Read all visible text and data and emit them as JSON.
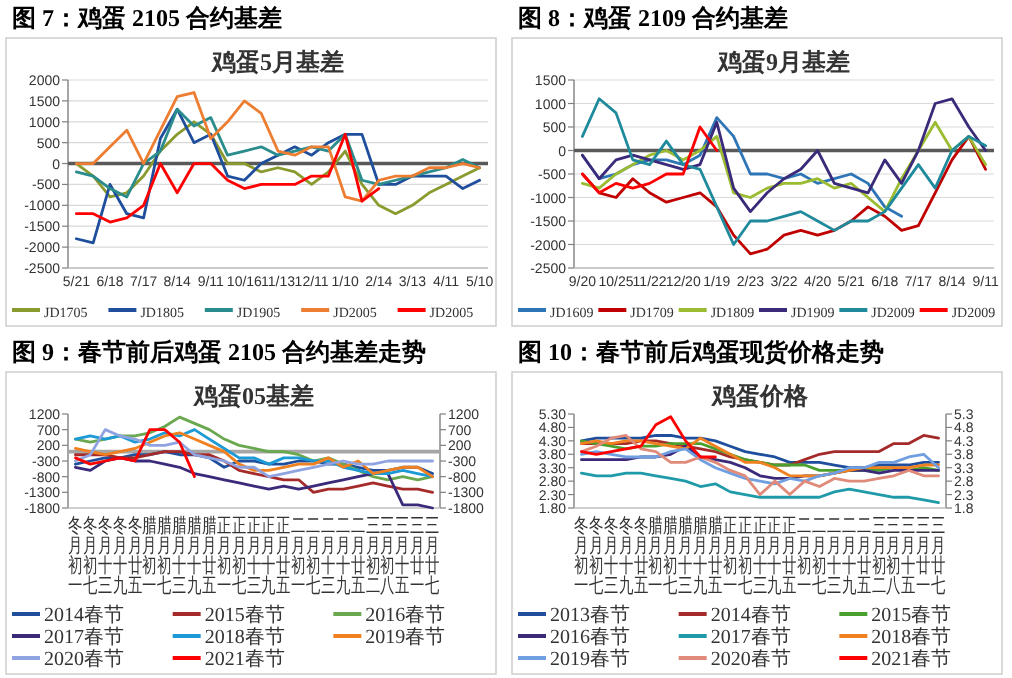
{
  "chart_data": [
    {
      "type": "line",
      "title": "图 7：鸡蛋 2105 合约基差",
      "subtitle": "鸡蛋5月基差",
      "categories": [
        "5/21",
        null,
        "6/18",
        null,
        "7/17",
        null,
        "8/14",
        null,
        "9/11",
        null,
        "10/16",
        null,
        "11/13",
        null,
        "12/11",
        null,
        "1/10",
        null,
        "2/14",
        null,
        "3/13",
        null,
        "4/11",
        null,
        "5/10"
      ],
      "series": [
        {
          "name": "JD1705",
          "color": "#8a9a2e",
          "values": [
            0,
            -300,
            -800,
            -700,
            -300,
            300,
            700,
            1000,
            700,
            0,
            0,
            -200,
            -100,
            -200,
            -500,
            -200,
            300,
            -500,
            -1000,
            -1200,
            -1000,
            -700,
            -500,
            -300,
            -100
          ]
        },
        {
          "name": "JD1805",
          "color": "#1f4e9c",
          "values": [
            -1800,
            -1900,
            -500,
            -1200,
            -1300,
            600,
            1300,
            500,
            700,
            -300,
            -400,
            0,
            200,
            400,
            200,
            500,
            700,
            700,
            -500,
            -500,
            -300,
            -300,
            -300,
            -600,
            -400
          ]
        },
        {
          "name": "JD1905",
          "color": "#2a8c8c",
          "values": [
            -200,
            -300,
            -600,
            -800,
            0,
            300,
            1300,
            900,
            1100,
            200,
            300,
            400,
            200,
            300,
            400,
            300,
            700,
            -400,
            -500,
            -400,
            -300,
            -200,
            -100,
            100,
            -100
          ]
        },
        {
          "name": "JD2005",
          "color": "#ed7d31",
          "values": [
            0,
            0,
            400,
            800,
            0,
            800,
            1600,
            1700,
            600,
            1000,
            1500,
            1200,
            300,
            200,
            400,
            400,
            -800,
            -900,
            -400,
            -300,
            -300,
            -100,
            -100,
            0,
            -100
          ]
        },
        {
          "name": "JD2005",
          "color": "#ff0000",
          "values": [
            -1200,
            -1200,
            -1400,
            -1300,
            -1000,
            0,
            -700,
            0,
            0,
            -400,
            -600,
            -500,
            -500,
            -500,
            -300,
            -300,
            700,
            -900,
            -600,
            null,
            null,
            null,
            null,
            null,
            null
          ]
        }
      ],
      "ylim": [
        -2500,
        2000
      ],
      "yticks": [
        -2500,
        -2000,
        -1500,
        -1000,
        -500,
        0,
        500,
        1000,
        1500,
        2000
      ],
      "grid": "y",
      "legend": "bottom",
      "ref_lines": [
        {
          "axis": "y",
          "value": 0,
          "color": "#595959"
        }
      ]
    },
    {
      "type": "line",
      "title": "图 8：鸡蛋 2109 合约基差",
      "subtitle": "鸡蛋9月基差",
      "categories": [
        "9/20",
        null,
        "10/25",
        null,
        "11/22",
        null,
        "12/20",
        null,
        "1/19",
        null,
        "2/23",
        null,
        "3/22",
        null,
        "4/20",
        null,
        "5/21",
        null,
        "6/18",
        null,
        "7/17",
        null,
        "8/14",
        null,
        "9/11"
      ],
      "series": [
        {
          "name": "JD1609",
          "color": "#2e75b6",
          "values": [
            -100,
            -600,
            -500,
            -300,
            -200,
            -200,
            -300,
            -100,
            700,
            300,
            -500,
            -500,
            -600,
            -500,
            -700,
            -600,
            -500,
            -700,
            -1200,
            -1400,
            null,
            null,
            null,
            null,
            null
          ]
        },
        {
          "name": "JD1709",
          "color": "#c00000",
          "values": [
            -500,
            -900,
            -1000,
            -600,
            -900,
            -1100,
            -1000,
            -900,
            -1200,
            -1800,
            -2200,
            -2100,
            -1800,
            -1700,
            -1800,
            -1700,
            -1500,
            -1200,
            -1400,
            -1700,
            -1600,
            -900,
            -200,
            300,
            -400
          ]
        },
        {
          "name": "JD1809",
          "color": "#9bbb30",
          "values": [
            -700,
            -800,
            -500,
            -300,
            -100,
            0,
            -200,
            0,
            300,
            -900,
            -1000,
            -800,
            -700,
            -700,
            -600,
            -800,
            -700,
            -1000,
            -1300,
            -600,
            0,
            600,
            0,
            300,
            -300
          ]
        },
        {
          "name": "JD1909",
          "color": "#3b2a7a",
          "values": [
            -100,
            -600,
            -200,
            -100,
            -200,
            -300,
            -400,
            -300,
            600,
            -800,
            -1300,
            -900,
            -600,
            -400,
            0,
            -700,
            -800,
            -900,
            -200,
            -700,
            0,
            1000,
            1100,
            500,
            0
          ]
        },
        {
          "name": "JD2009",
          "color": "#1f8a9c",
          "values": [
            300,
            1100,
            800,
            -200,
            -300,
            200,
            -300,
            -400,
            -1200,
            -2000,
            -1500,
            -1500,
            -1400,
            -1300,
            -1500,
            -1700,
            -1500,
            -1500,
            -1300,
            -800,
            -300,
            -800,
            0,
            300,
            100
          ]
        },
        {
          "name": "JD2009",
          "color": "#ff0000",
          "values": [
            -500,
            -900,
            -700,
            -800,
            -700,
            -500,
            -500,
            500,
            0,
            null,
            null,
            null,
            null,
            null,
            null,
            null,
            null,
            null,
            null,
            null,
            null,
            null,
            null,
            null,
            null
          ]
        }
      ],
      "ylim": [
        -2500,
        1500
      ],
      "yticks": [
        -2500,
        -2000,
        -1500,
        -1000,
        -500,
        0,
        500,
        1000,
        1500
      ],
      "grid": "y",
      "legend": "bottom",
      "ref_lines": [
        {
          "axis": "y",
          "value": 0,
          "color": "#595959"
        }
      ]
    },
    {
      "type": "line",
      "title": "图 9：春节前后鸡蛋 2105 合约基差走势",
      "subtitle": "鸡蛋05基差",
      "categories": [
        "冬月初一",
        "冬月初七",
        "冬月十三",
        "冬月十九",
        "冬月廿五",
        "腊月初一",
        "腊月初七",
        "腊月十三",
        "腊月十九",
        "腊月廿五",
        "正月初一",
        "正月初七",
        "正月十三",
        "正月十九",
        "正月廿五",
        "二月初一",
        "二月初七",
        "二月十三",
        "二月十九",
        "二月廿五",
        "三月初二",
        "三月初八",
        "三月十五",
        "三月廿一",
        "三月廿七"
      ],
      "series": [
        {
          "name": "2014春节",
          "color": "#1f4e9c",
          "values": [
            -400,
            -300,
            -200,
            -200,
            -100,
            -100,
            0,
            -100,
            -100,
            -200,
            -500,
            -300,
            -300,
            -400,
            -400,
            -300,
            -300,
            -400,
            -400,
            -500,
            -600,
            -600,
            -500,
            -500,
            -700
          ]
        },
        {
          "name": "2015春节",
          "color": "#a52a2a",
          "values": [
            -100,
            -100,
            -100,
            -200,
            -200,
            -100,
            0,
            0,
            -100,
            -100,
            -300,
            -600,
            -700,
            -800,
            -900,
            -900,
            -1300,
            -1200,
            -1200,
            -1100,
            -1000,
            -1100,
            -1200,
            -1200,
            -1300
          ]
        },
        {
          "name": "2016春节",
          "color": "#6aa84f",
          "values": [
            400,
            300,
            400,
            500,
            500,
            600,
            800,
            1100,
            900,
            700,
            400,
            200,
            100,
            0,
            0,
            -100,
            -300,
            -200,
            -400,
            -600,
            -800,
            -900,
            -800,
            -900,
            -800
          ]
        },
        {
          "name": "2017春节",
          "color": "#3b2a7a",
          "values": [
            -500,
            -600,
            -300,
            -200,
            -300,
            -300,
            -400,
            -500,
            -700,
            -800,
            -900,
            -1000,
            -1100,
            -1200,
            -1100,
            -1200,
            -1100,
            -1000,
            -900,
            -800,
            -700,
            -700,
            -1700,
            -1700,
            -1800
          ]
        },
        {
          "name": "2018春节",
          "color": "#1b9ad6",
          "values": [
            400,
            500,
            400,
            500,
            300,
            400,
            600,
            500,
            700,
            400,
            100,
            -200,
            -200,
            -400,
            -200,
            -200,
            -300,
            -300,
            -500,
            -600,
            -700,
            -700,
            -600,
            -700,
            -800
          ]
        },
        {
          "name": "2019春节",
          "color": "#f08020",
          "values": [
            100,
            0,
            -100,
            0,
            100,
            300,
            500,
            600,
            400,
            200,
            0,
            -400,
            -600,
            -600,
            -500,
            -400,
            -400,
            -200,
            -500,
            -300,
            -700,
            -600,
            -500,
            -500,
            -800
          ]
        },
        {
          "name": "2020春节",
          "color": "#8fa3e0",
          "values": [
            -300,
            -100,
            700,
            500,
            400,
            200,
            200,
            300,
            -100,
            -200,
            -300,
            -500,
            -500,
            -800,
            -700,
            -600,
            -500,
            -400,
            -300,
            -400,
            -400,
            -300,
            -300,
            -300,
            -300
          ]
        },
        {
          "name": "2021春节",
          "color": "#ff0000",
          "values": [
            -200,
            -400,
            -300,
            -200,
            -300,
            700,
            700,
            300,
            -800,
            null,
            null,
            null,
            null,
            null,
            null,
            null,
            null,
            null,
            null,
            null,
            null,
            null,
            null,
            null,
            null
          ]
        }
      ],
      "ylim": [
        -1800,
        1200
      ],
      "yticks": [
        -1800,
        -1300,
        -800,
        -300,
        200,
        700,
        1200
      ],
      "y2lim": [
        -1800,
        1200
      ],
      "y2ticks": [
        -1800,
        -1300,
        -800,
        -300,
        200,
        700,
        1200
      ],
      "legend": "bottom",
      "ref_lines": [
        {
          "axis": "y",
          "value": 0,
          "color": "#a6a6a6"
        }
      ]
    },
    {
      "type": "line",
      "title": "图 10：春节前后鸡蛋现货价格走势",
      "subtitle": "鸡蛋价格",
      "categories": [
        "冬月初一",
        "冬月初七",
        "冬月十三",
        "冬月十九",
        "冬月廿五",
        "腊月初一",
        "腊月初七",
        "腊月十三",
        "腊月十九",
        "腊月廿五",
        "正月初一",
        "正月初七",
        "正月十三",
        "正月十九",
        "正月廿五",
        "二月初一",
        "二月初七",
        "二月十三",
        "二月十九",
        "二月廿五",
        "三月初二",
        "三月初八",
        "三月十五",
        "三月廿一",
        "三月廿七"
      ],
      "series": [
        {
          "name": "2013春节",
          "color": "#1f4e9c",
          "values": [
            4.3,
            4.4,
            4.4,
            4.4,
            4.4,
            4.5,
            4.5,
            4.4,
            4.4,
            4.3,
            4.1,
            3.9,
            3.8,
            3.7,
            3.5,
            3.5,
            3.5,
            3.4,
            3.3,
            3.3,
            3.4,
            3.4,
            3.4,
            3.5,
            3.5
          ]
        },
        {
          "name": "2014春节",
          "color": "#a52a2a",
          "values": [
            4.2,
            4.2,
            4.2,
            4.2,
            4.3,
            4.3,
            4.2,
            4.1,
            4.0,
            3.9,
            3.7,
            3.6,
            3.5,
            3.4,
            3.4,
            3.6,
            3.8,
            3.9,
            3.9,
            3.9,
            3.9,
            4.2,
            4.2,
            4.5,
            4.4
          ]
        },
        {
          "name": "2015春节",
          "color": "#4aa02c",
          "values": [
            4.3,
            4.2,
            4.1,
            4.0,
            4.1,
            4.1,
            4.2,
            4.2,
            4.2,
            4.0,
            3.8,
            3.6,
            3.5,
            3.4,
            3.4,
            3.4,
            3.2,
            3.2,
            3.2,
            3.2,
            3.2,
            3.3,
            3.2,
            3.3,
            3.2
          ]
        },
        {
          "name": "2016春节",
          "color": "#3b2a7a",
          "values": [
            3.6,
            3.6,
            3.6,
            3.6,
            3.7,
            3.7,
            3.8,
            4.1,
            3.7,
            3.6,
            3.5,
            3.3,
            3.0,
            2.9,
            2.9,
            3.0,
            3.0,
            3.1,
            3.2,
            3.2,
            3.1,
            3.2,
            3.2,
            3.2,
            3.2
          ]
        },
        {
          "name": "2017春节",
          "color": "#1f9aa8",
          "values": [
            3.1,
            3.0,
            3.0,
            3.1,
            3.1,
            3.0,
            2.9,
            2.8,
            2.6,
            2.7,
            2.4,
            2.3,
            2.2,
            2.2,
            2.2,
            2.2,
            2.2,
            2.4,
            2.5,
            2.4,
            2.3,
            2.2,
            2.2,
            2.1,
            2.0
          ]
        },
        {
          "name": "2018春节",
          "color": "#f08020",
          "values": [
            4.2,
            4.3,
            4.2,
            4.3,
            4.3,
            4.2,
            4.1,
            4.0,
            4.4,
            4.1,
            3.8,
            3.5,
            3.5,
            3.3,
            3.0,
            3.0,
            3.0,
            3.1,
            3.2,
            3.3,
            3.3,
            3.3,
            3.3,
            3.4,
            3.4
          ]
        },
        {
          "name": "2019春节",
          "color": "#6f9fe0",
          "values": [
            3.8,
            3.9,
            3.8,
            3.7,
            3.7,
            3.7,
            3.9,
            4.0,
            3.6,
            3.3,
            3.1,
            2.9,
            2.8,
            2.7,
            2.9,
            2.8,
            3.0,
            3.1,
            3.3,
            3.3,
            3.5,
            3.5,
            3.7,
            3.8,
            3.3
          ]
        },
        {
          "name": "2020春节",
          "color": "#e08a7a",
          "values": [
            3.9,
            4.1,
            4.4,
            4.5,
            4.0,
            3.9,
            3.5,
            3.5,
            3.7,
            3.5,
            3.2,
            3.0,
            2.3,
            2.8,
            2.3,
            2.8,
            2.6,
            2.9,
            2.8,
            2.8,
            2.9,
            3.0,
            3.2,
            3.0,
            3.0
          ]
        },
        {
          "name": "2021春节",
          "color": "#ff0000",
          "values": [
            3.9,
            3.8,
            3.9,
            4.0,
            4.1,
            4.9,
            5.2,
            4.3,
            3.7,
            3.7,
            null,
            null,
            null,
            null,
            null,
            null,
            null,
            null,
            null,
            null,
            null,
            null,
            null,
            null,
            null
          ]
        }
      ],
      "ylim": [
        1.8,
        5.3
      ],
      "yticks": [
        {
          "value": 1.8,
          "label": "1.80"
        },
        {
          "value": 2.3,
          "label": "2.30"
        },
        {
          "value": 2.8,
          "label": "2.80"
        },
        {
          "value": 3.3,
          "label": "3.30"
        },
        {
          "value": 3.8,
          "label": "3.80"
        },
        {
          "value": 4.3,
          "label": "4.30"
        },
        {
          "value": 4.8,
          "label": "4.80"
        },
        {
          "value": 5.3,
          "label": "5.30"
        }
      ],
      "y2lim": [
        1.8,
        5.3
      ],
      "y2ticks": [
        1.8,
        2.3,
        2.8,
        3.3,
        3.8,
        4.3,
        4.8,
        5.3
      ],
      "legend": "bottom"
    }
  ]
}
